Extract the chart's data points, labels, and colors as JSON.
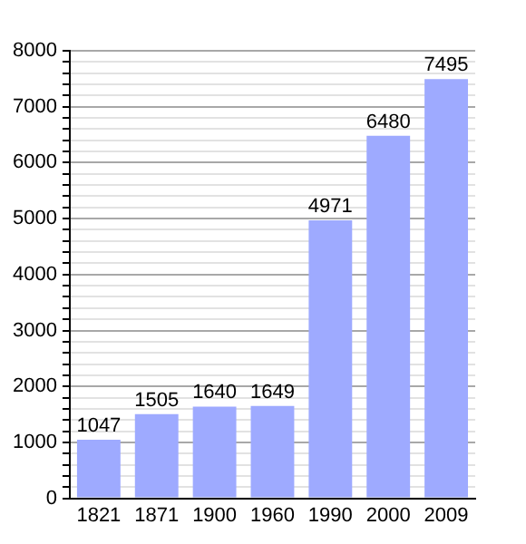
{
  "chart_data": {
    "type": "bar",
    "categories": [
      "1821",
      "1871",
      "1900",
      "1960",
      "1990",
      "2000",
      "2009"
    ],
    "values": [
      1047,
      1505,
      1640,
      1649,
      4971,
      6480,
      7495
    ],
    "color": "#9eaaff",
    "ylim": [
      0,
      8000
    ],
    "yticks": [
      0,
      {
        "value": 200,
        "label": null
      },
      {
        "value": 400,
        "label": null
      },
      {
        "value": 600,
        "label": null
      },
      {
        "value": 800,
        "label": null
      },
      1000,
      {
        "value": 1200,
        "label": null
      },
      {
        "value": 1400,
        "label": null
      },
      {
        "value": 1600,
        "label": null
      },
      {
        "value": 1800,
        "label": null
      },
      2000,
      {
        "value": 2200,
        "label": null
      },
      {
        "value": 2400,
        "label": null
      },
      {
        "value": 2600,
        "label": null
      },
      {
        "value": 2800,
        "label": null
      },
      3000,
      {
        "value": 3200,
        "label": null
      },
      {
        "value": 3400,
        "label": null
      },
      {
        "value": 3600,
        "label": null
      },
      {
        "value": 3800,
        "label": null
      },
      4000,
      {
        "value": 4200,
        "label": null
      },
      {
        "value": 4400,
        "label": null
      },
      {
        "value": 4600,
        "label": null
      },
      {
        "value": 4800,
        "label": null
      },
      5000,
      {
        "value": 5200,
        "label": null
      },
      {
        "value": 5400,
        "label": null
      },
      {
        "value": 5600,
        "label": null
      },
      {
        "value": 5800,
        "label": null
      },
      6000,
      {
        "value": 6200,
        "label": null
      },
      {
        "value": 6400,
        "label": null
      },
      {
        "value": 6600,
        "label": null
      },
      {
        "value": 6800,
        "label": null
      },
      7000,
      {
        "value": 7200,
        "label": null
      },
      {
        "value": 7400,
        "label": null
      },
      {
        "value": 7600,
        "label": null
      },
      {
        "value": 7800,
        "label": null
      },
      8000
    ],
    "grid": "y",
    "data_labels": true,
    "legend": false
  }
}
